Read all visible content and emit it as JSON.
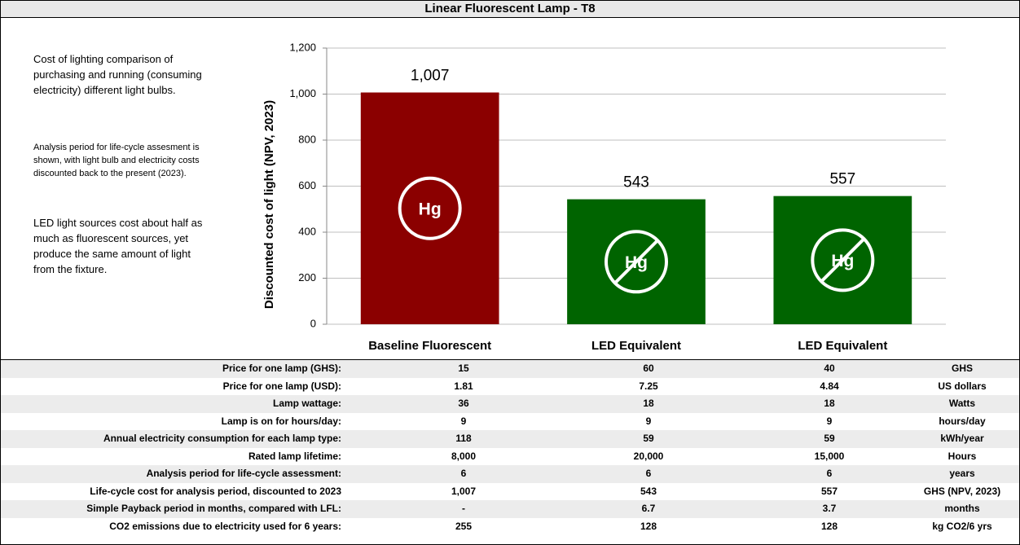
{
  "title": "Linear Fluorescent Lamp - T8",
  "notes": [
    "Cost of lighting comparison of purchasing and running (consuming electricity) different light bulbs.",
    "Analysis period for life-cycle assesment is shown, with light bulb and electricity costs discounted back to the present (2023).",
    "LED light sources cost about half as much as fluorescent sources, yet produce the same amount of light from the fixture."
  ],
  "chart_data": {
    "type": "bar",
    "ylabel": "Discounted cost of light  (NPV, 2023)",
    "categories": [
      "Baseline Fluorescent",
      "LED Equivalent",
      "LED Equivalent"
    ],
    "values": [
      1007,
      543,
      557
    ],
    "value_labels": [
      "1,007",
      "543",
      "557"
    ],
    "colors": [
      "#8b0000",
      "#006400",
      "#006400"
    ],
    "icon_label": "Hg",
    "icon_crossed": [
      false,
      true,
      true
    ],
    "ylim": [
      0,
      1200
    ],
    "yticks": [
      0,
      200,
      400,
      600,
      800,
      {
        "value": 1000,
        "label": "1,000"
      },
      {
        "value": 1200,
        "label": "1,200"
      }
    ],
    "grid": true
  },
  "table": {
    "rows": [
      [
        "Price for one lamp (GHS):",
        "15",
        "60",
        "40",
        "GHS"
      ],
      [
        "Price for one lamp (USD):",
        "1.81",
        "7.25",
        "4.84",
        "US dollars"
      ],
      [
        "Lamp wattage:",
        "36",
        "18",
        "18",
        "Watts"
      ],
      [
        "Lamp is on for hours/day:",
        "9",
        "9",
        "9",
        "hours/day"
      ],
      [
        "Annual electricity consumption for each lamp type:",
        "118",
        "59",
        "59",
        "kWh/year"
      ],
      [
        "Rated lamp lifetime:",
        "8,000",
        "20,000",
        "15,000",
        "Hours"
      ],
      [
        "Analysis period for life-cycle assessment:",
        "6",
        "6",
        "6",
        "years"
      ],
      [
        "Life-cycle cost for analysis period, discounted to 2023",
        "1,007",
        "543",
        "557",
        "GHS (NPV, 2023)"
      ],
      [
        "Simple Payback period in months, compared with LFL:",
        "-",
        "6.7",
        "3.7",
        "months"
      ],
      [
        "CO2 emissions due to electricity used for 6 years:",
        "255",
        "128",
        "128",
        "kg CO2/6 yrs"
      ]
    ]
  }
}
